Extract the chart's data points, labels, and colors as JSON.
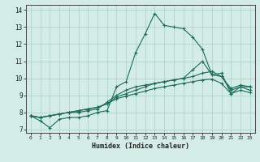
{
  "xlabel": "Humidex (Indice chaleur)",
  "xlim": [
    -0.5,
    23.5
  ],
  "ylim": [
    6.8,
    14.3
  ],
  "yticks": [
    7,
    8,
    9,
    10,
    11,
    12,
    13,
    14
  ],
  "xticks": [
    0,
    1,
    2,
    3,
    4,
    5,
    6,
    7,
    8,
    9,
    10,
    11,
    12,
    13,
    14,
    15,
    16,
    17,
    18,
    19,
    20,
    21,
    22,
    23
  ],
  "bg_color": "#d4ece6",
  "line_color": "#1a6b5a",
  "grid_color": "#b0d4cc",
  "curves": [
    [
      7.8,
      7.5,
      7.1,
      7.6,
      7.7,
      7.7,
      7.8,
      8.0,
      8.1,
      9.5,
      9.8,
      11.5,
      12.6,
      13.8,
      13.1,
      13.0,
      12.9,
      12.4,
      11.7,
      10.2,
      10.3,
      9.1,
      9.5,
      9.5
    ],
    [
      7.8,
      7.7,
      7.8,
      7.9,
      8.0,
      8.0,
      8.1,
      8.2,
      8.6,
      9.0,
      9.3,
      9.5,
      9.6,
      9.7,
      9.8,
      9.9,
      10.0,
      10.5,
      11.0,
      10.2,
      10.1,
      9.4,
      9.6,
      9.5
    ],
    [
      7.8,
      7.7,
      7.8,
      7.9,
      8.0,
      8.1,
      8.2,
      8.3,
      8.5,
      8.9,
      9.1,
      9.3,
      9.5,
      9.7,
      9.8,
      9.9,
      10.0,
      10.1,
      10.3,
      10.4,
      10.1,
      9.3,
      9.5,
      9.3
    ],
    [
      7.8,
      7.7,
      7.8,
      7.9,
      8.0,
      8.1,
      8.2,
      8.3,
      8.5,
      8.8,
      8.95,
      9.1,
      9.25,
      9.4,
      9.5,
      9.6,
      9.7,
      9.8,
      9.9,
      9.95,
      9.7,
      9.1,
      9.3,
      9.15
    ]
  ]
}
